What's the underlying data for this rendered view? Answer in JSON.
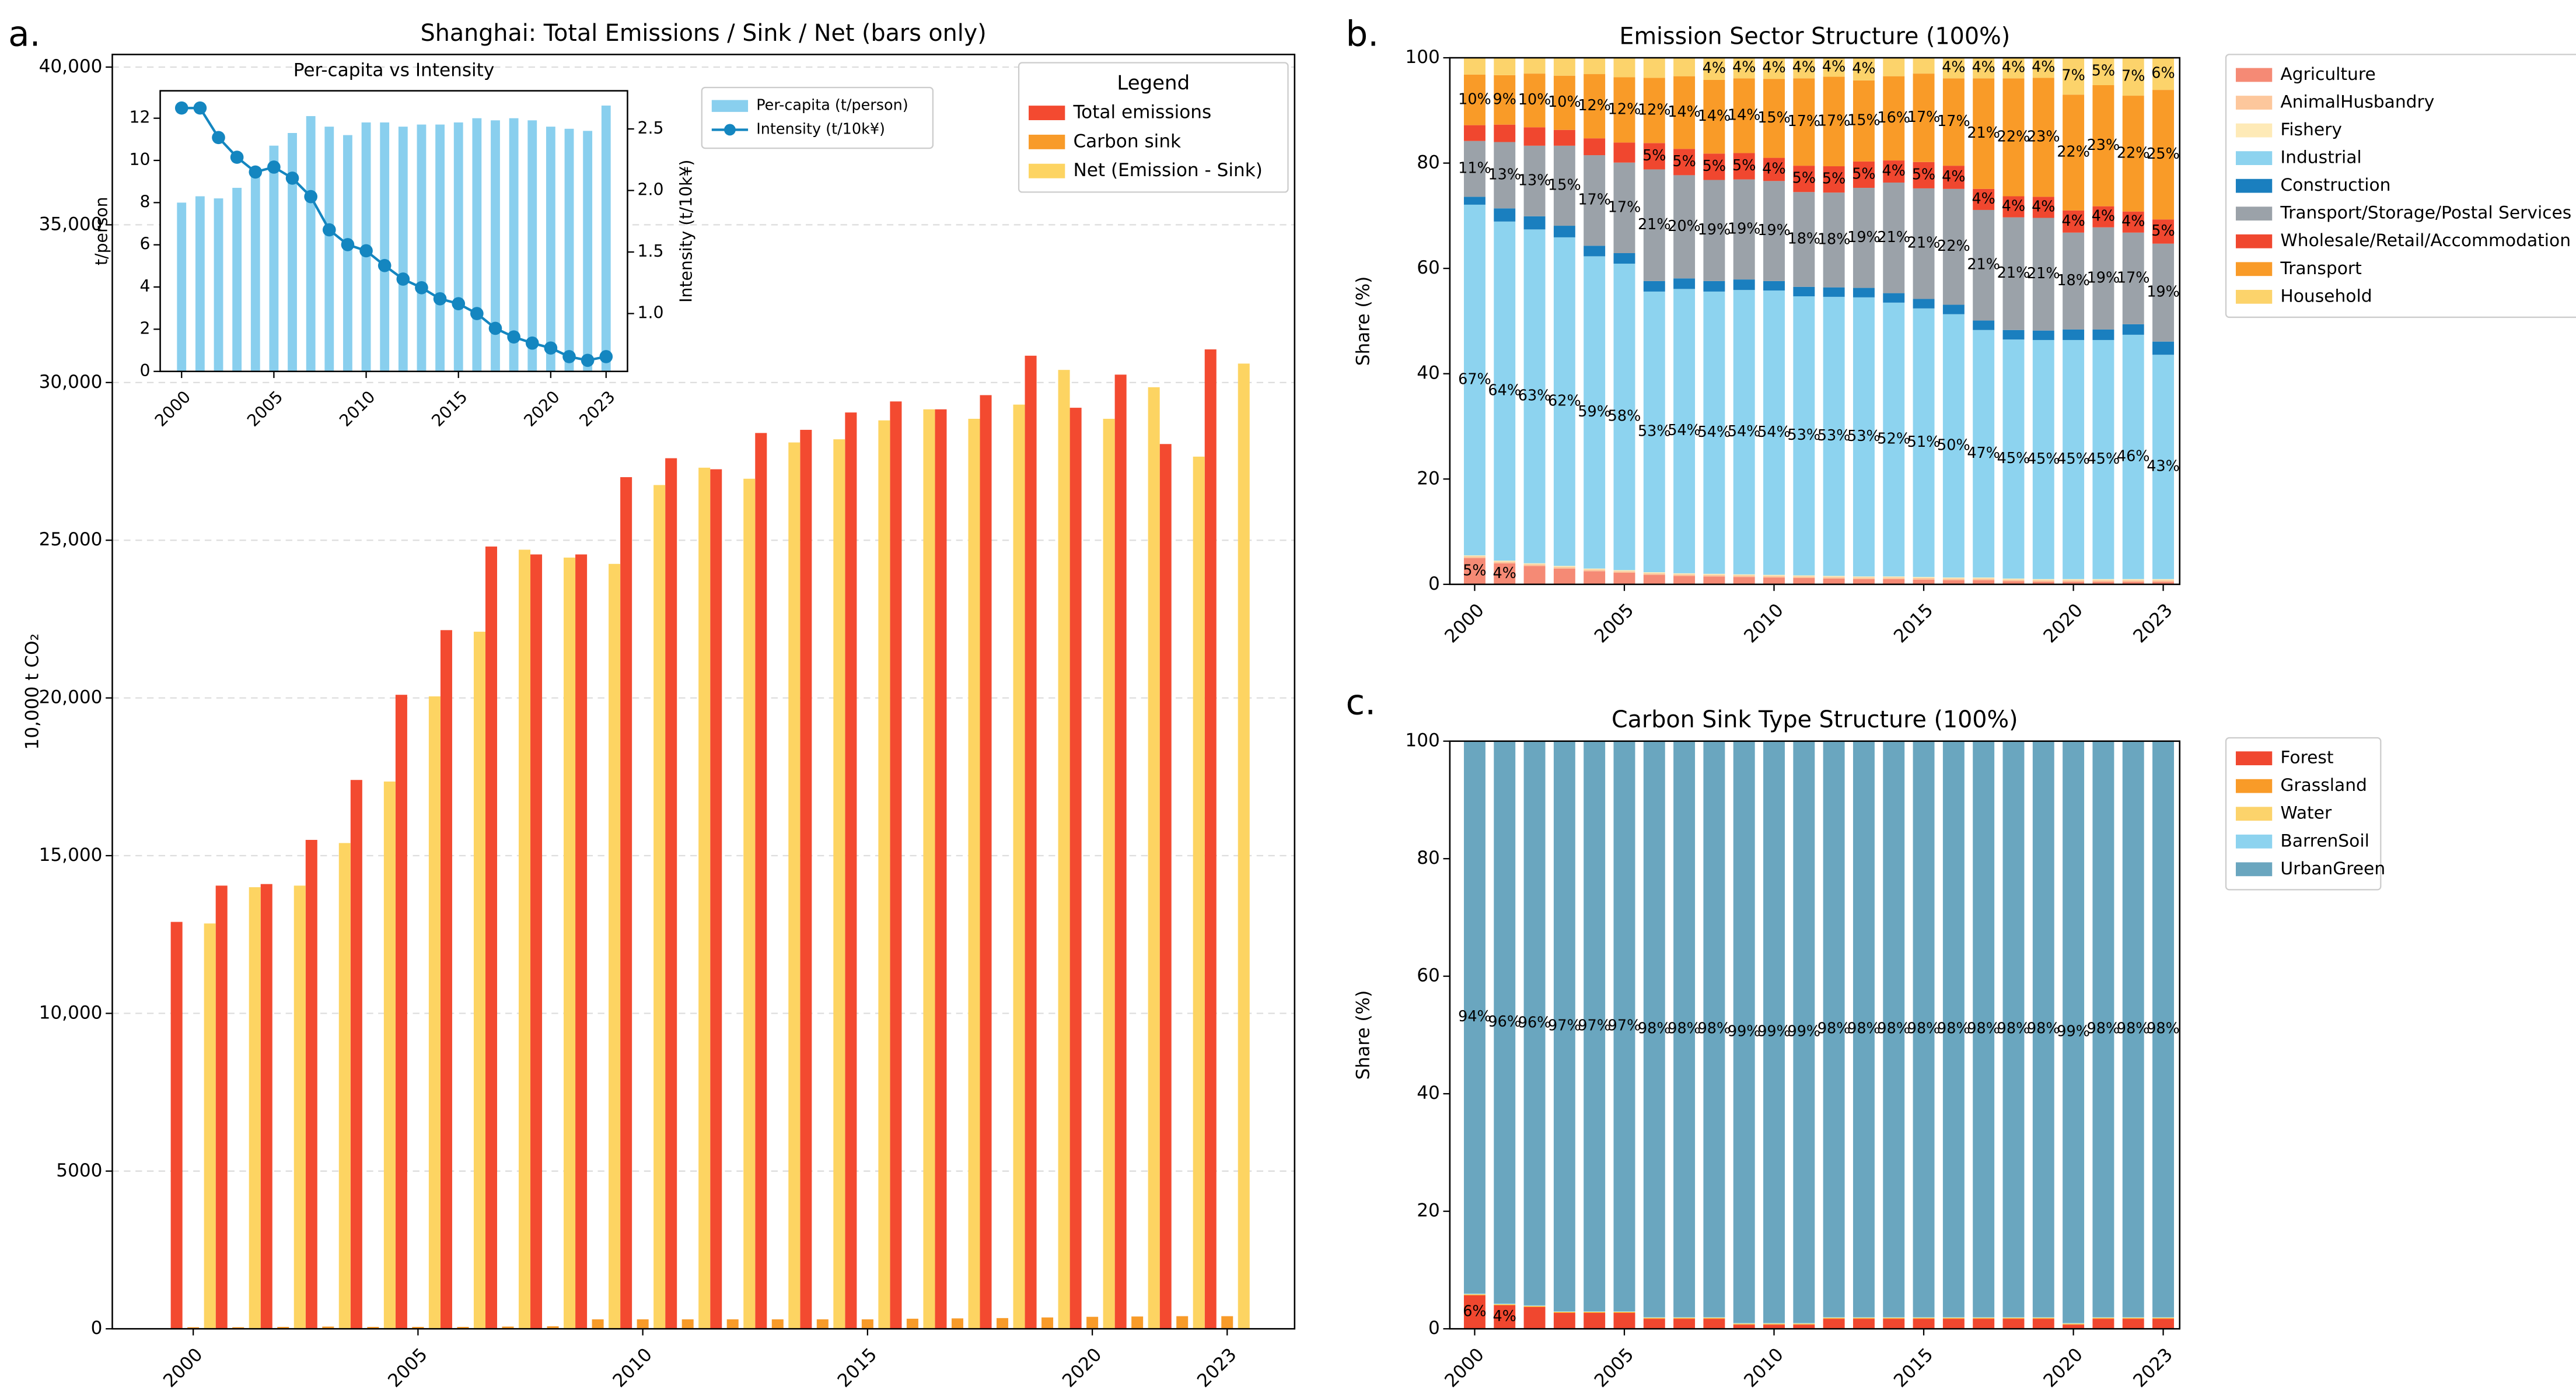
{
  "chart_data": [
    {
      "type": "bar",
      "panel_label": "a.",
      "title": "Shanghai: Total Emissions / Sink / Net (bars only)",
      "y_label": "10,000 t CO₂",
      "x": [
        2000,
        2001,
        2002,
        2003,
        2004,
        2005,
        2006,
        2007,
        2008,
        2009,
        2010,
        2011,
        2012,
        2013,
        2014,
        2015,
        2016,
        2017,
        2018,
        2019,
        2020,
        2021,
        2022,
        2023
      ],
      "xlim": [
        1998.2,
        2024.5
      ],
      "xticks": [
        2000,
        2005,
        2010,
        2015,
        2020,
        2023
      ],
      "ylim": [
        0,
        40400
      ],
      "yticks": [
        0,
        5000,
        {
          "value": 10000,
          "label": "10,000"
        },
        {
          "value": 15000,
          "label": "15,000"
        },
        {
          "value": 20000,
          "label": "20,000"
        },
        {
          "value": 25000,
          "label": "25,000"
        },
        {
          "value": 30000,
          "label": "30,000"
        },
        {
          "value": 35000,
          "label": "35,000"
        },
        {
          "value": 40000,
          "label": "40,000"
        }
      ],
      "grid": true,
      "legend": "upper right",
      "legend_title": "Legend",
      "series": [
        {
          "name": "Total emissions",
          "color": "#f34a30",
          "values": [
            12900,
            14050,
            14100,
            15500,
            17400,
            20100,
            22150,
            24800,
            24550,
            24550,
            27000,
            27600,
            27250,
            28400,
            28500,
            29050,
            29400,
            29150,
            29600,
            30850,
            29200,
            30250,
            28050,
            31050
          ]
        },
        {
          "name": "Carbon sink",
          "color": "#f89b29",
          "values": [
            50,
            50,
            60,
            70,
            60,
            60,
            60,
            70,
            80,
            300,
            300,
            300,
            300,
            300,
            300,
            300,
            320,
            330,
            340,
            360,
            380,
            390,
            400,
            400
          ]
        },
        {
          "name": "Net (Emission - Sink)",
          "color": "#fdd462",
          "values": [
            12850,
            14000,
            14050,
            15400,
            17350,
            20050,
            22100,
            24700,
            24450,
            24250,
            26750,
            27300,
            26950,
            28100,
            28200,
            28800,
            29150,
            28850,
            29300,
            30400,
            28850,
            29850,
            27650,
            30600
          ]
        }
      ]
    },
    {
      "type": "combo",
      "title": "Per-capita vs Intensity",
      "y_label": "t/person",
      "y2_label": "Intensity (t/10k¥)",
      "x": [
        2000,
        2001,
        2002,
        2003,
        2004,
        2005,
        2006,
        2007,
        2008,
        2009,
        2010,
        2011,
        2012,
        2013,
        2014,
        2015,
        2016,
        2017,
        2018,
        2019,
        2020,
        2021,
        2022,
        2023
      ],
      "xlim": [
        1998.84,
        2024.16
      ],
      "xticks": [
        2000,
        2005,
        2010,
        2015,
        2020,
        2023
      ],
      "ylim": [
        0,
        13.3
      ],
      "yticks": [
        0,
        2,
        4,
        6,
        8,
        10,
        12
      ],
      "y2lim": [
        0.53,
        2.81
      ],
      "y2ticks": [
        {
          "value": 1,
          "label": "1.0"
        },
        1.5,
        {
          "value": 2,
          "label": "2.0"
        },
        2.5
      ],
      "legend": "outside right",
      "series": [
        {
          "name": "Per-capita (t/person)",
          "type": "bar",
          "color": "#89cfee",
          "values": [
            8.0,
            8.3,
            8.2,
            8.7,
            9.5,
            10.7,
            11.3,
            12.1,
            11.6,
            11.2,
            11.8,
            11.8,
            11.6,
            11.7,
            11.7,
            11.8,
            12.0,
            11.9,
            12.0,
            11.9,
            11.6,
            11.5,
            11.4,
            12.6
          ]
        },
        {
          "name": "Intensity (t/10k¥)",
          "type": "line",
          "axis": "y2",
          "color": "#1486c0",
          "values": [
            2.67,
            2.67,
            2.43,
            2.27,
            2.15,
            2.19,
            2.1,
            1.95,
            1.68,
            1.56,
            1.51,
            1.39,
            1.28,
            1.21,
            1.12,
            1.08,
            1.0,
            0.88,
            0.81,
            0.76,
            0.72,
            0.65,
            0.62,
            0.65
          ]
        }
      ]
    },
    {
      "type": "stacked_bar",
      "panel_label": "b.",
      "title": "Emission Sector Structure (100%)",
      "y_label": "Share (%)",
      "x": [
        2000,
        2001,
        2002,
        2003,
        2004,
        2005,
        2006,
        2007,
        2008,
        2009,
        2010,
        2011,
        2012,
        2013,
        2014,
        2015,
        2016,
        2017,
        2018,
        2019,
        2020,
        2021,
        2022,
        2023
      ],
      "xlim": [
        1999.17,
        2023.55
      ],
      "xticks": [
        2000,
        2005,
        2010,
        2015,
        2020,
        2023
      ],
      "ylim": [
        0,
        100
      ],
      "yticks": [
        0,
        20,
        40,
        60,
        80,
        100
      ],
      "legend": "outside right",
      "series": [
        {
          "name": "Agriculture",
          "color": "#f58a75",
          "values": [
            5.0,
            4.0,
            3.5,
            3.0,
            2.5,
            2.2,
            1.8,
            1.6,
            1.5,
            1.4,
            1.3,
            1.2,
            1.1,
            1.0,
            1.0,
            0.9,
            0.8,
            0.8,
            0.6,
            0.5,
            0.5,
            0.5,
            0.5,
            0.5
          ],
          "value_labels": [
            "5%",
            "4%",
            null,
            null,
            null,
            null,
            null,
            null,
            null,
            null,
            null,
            null,
            null,
            null,
            null,
            null,
            null,
            null,
            null,
            null,
            null,
            null,
            null,
            null
          ]
        },
        {
          "name": "AnimalHusbandry",
          "color": "#fdc79c",
          "values": [
            0.3,
            0.3,
            0.3,
            0.3,
            0.3,
            0.3,
            0.3,
            0.3,
            0.3,
            0.3,
            0.3,
            0.3,
            0.3,
            0.3,
            0.3,
            0.3,
            0.3,
            0.3,
            0.3,
            0.3,
            0.3,
            0.3,
            0.3,
            0.3
          ]
        },
        {
          "name": "Fishery",
          "color": "#feeab7",
          "values": [
            0.2,
            0.2,
            0.2,
            0.2,
            0.2,
            0.2,
            0.2,
            0.2,
            0.2,
            0.2,
            0.2,
            0.2,
            0.2,
            0.2,
            0.2,
            0.2,
            0.2,
            0.2,
            0.2,
            0.2,
            0.2,
            0.2,
            0.2,
            0.2
          ]
        },
        {
          "name": "Industrial",
          "color": "#8dd3ef",
          "values": [
            66.6,
            64.4,
            63.4,
            62.4,
            59.3,
            58.2,
            53.3,
            54.0,
            53.6,
            54.0,
            54.0,
            53.0,
            53.0,
            53.0,
            52.0,
            51.0,
            50.0,
            47.0,
            45.4,
            45.4,
            45.4,
            45.4,
            46.4,
            42.6
          ],
          "value_labels": [
            "67%",
            "64%",
            "63%",
            "62%",
            "59%",
            "58%",
            "53%",
            "54%",
            "54%",
            "54%",
            "54%",
            "53%",
            "53%",
            "53%",
            "52%",
            "51%",
            "50%",
            "47%",
            "45%",
            "45%",
            "45%",
            "45%",
            "46%",
            "43%"
          ]
        },
        {
          "name": "Construction",
          "color": "#1a7fbf",
          "values": [
            1.5,
            2.5,
            2.5,
            2.2,
            2.0,
            2.0,
            2.0,
            2.0,
            2.0,
            2.0,
            1.8,
            1.8,
            1.8,
            1.8,
            1.8,
            1.8,
            1.8,
            1.8,
            1.8,
            1.8,
            2.0,
            2.0,
            2.0,
            2.5
          ]
        },
        {
          "name": "Transport/Storage/Postal Services",
          "color": "#9ba2a9",
          "values": [
            10.6,
            12.6,
            13.4,
            15.2,
            17.2,
            17.2,
            21.2,
            19.6,
            19.2,
            19.0,
            19.0,
            18.0,
            18.0,
            19.0,
            21.0,
            21.0,
            22.0,
            21.0,
            21.4,
            21.4,
            18.4,
            19.4,
            17.4,
            18.6
          ],
          "value_labels": [
            "11%",
            "13%",
            "13%",
            "15%",
            "17%",
            "17%",
            "21%",
            "20%",
            "19%",
            "19%",
            "19%",
            "18%",
            "18%",
            "19%",
            "21%",
            "21%",
            "22%",
            "21%",
            "21%",
            "21%",
            "18%",
            "19%",
            "17%",
            "19%"
          ]
        },
        {
          "name": "Wholesale/Retail/Accommodation",
          "color": "#f0472f",
          "values": [
            3.0,
            3.3,
            3.5,
            3.0,
            3.2,
            3.8,
            5.0,
            5.0,
            5.0,
            5.0,
            4.4,
            5.0,
            5.0,
            5.0,
            4.2,
            5.0,
            4.4,
            4.0,
            4.0,
            4.0,
            4.2,
            4.0,
            4.0,
            4.6
          ],
          "value_labels": [
            null,
            null,
            null,
            null,
            null,
            null,
            "5%",
            "5%",
            "5%",
            "5%",
            "4%",
            "5%",
            "5%",
            "5%",
            "4%",
            "5%",
            "4%",
            "4%",
            "4%",
            "4%",
            "4%",
            "4%",
            "4%",
            "5%"
          ]
        },
        {
          "name": "Transport",
          "color": "#f99b28",
          "values": [
            9.6,
            9.4,
            10.2,
            10.3,
            12.2,
            12.4,
            12.4,
            13.8,
            14.0,
            14.2,
            15.0,
            16.6,
            17.0,
            15.4,
            16.0,
            16.8,
            16.6,
            21.0,
            22.4,
            22.6,
            22.0,
            23.0,
            22.0,
            24.6
          ],
          "value_labels": [
            "10%",
            "9%",
            "10%",
            "10%",
            "12%",
            "12%",
            "12%",
            "14%",
            "14%",
            "14%",
            "15%",
            "17%",
            "17%",
            "15%",
            "16%",
            "17%",
            "17%",
            "21%",
            "22%",
            "23%",
            "22%",
            "23%",
            "22%",
            "25%"
          ]
        },
        {
          "name": "Household",
          "color": "#fcd36b",
          "values": [
            3.2,
            3.3,
            3.0,
            3.4,
            3.1,
            3.7,
            3.8,
            3.5,
            4.2,
            3.9,
            4.0,
            3.9,
            3.6,
            4.3,
            3.5,
            3.0,
            3.9,
            3.9,
            3.9,
            3.8,
            7.0,
            5.2,
            7.2,
            6.1
          ],
          "value_labels": [
            null,
            null,
            null,
            null,
            null,
            null,
            null,
            null,
            "4%",
            "4%",
            "4%",
            "4%",
            "4%",
            "4%",
            null,
            null,
            "4%",
            "4%",
            "4%",
            "4%",
            "7%",
            "5%",
            "7%",
            "6%"
          ]
        }
      ]
    },
    {
      "type": "stacked_bar",
      "panel_label": "c.",
      "title": "Carbon Sink Type Structure (100%)",
      "y_label": "Share (%)",
      "x": [
        2000,
        2001,
        2002,
        2003,
        2004,
        2005,
        2006,
        2007,
        2008,
        2009,
        2010,
        2011,
        2012,
        2013,
        2014,
        2015,
        2016,
        2017,
        2018,
        2019,
        2020,
        2021,
        2022,
        2023
      ],
      "xlim": [
        1999.17,
        2023.55
      ],
      "xticks": [
        2000,
        2005,
        2010,
        2015,
        2020,
        2023
      ],
      "ylim": [
        0,
        100
      ],
      "yticks": [
        0,
        20,
        40,
        60,
        80,
        100
      ],
      "legend": "outside right",
      "series": [
        {
          "name": "Forest",
          "color": "#f0472f",
          "values": [
            5.7,
            4.0,
            3.7,
            2.7,
            2.7,
            2.7,
            1.7,
            1.7,
            1.7,
            0.7,
            0.7,
            0.7,
            1.7,
            1.7,
            1.7,
            1.7,
            1.7,
            1.7,
            1.7,
            1.7,
            0.7,
            1.7,
            1.7,
            1.7
          ],
          "value_labels": [
            "6%",
            "4%",
            null,
            null,
            null,
            null,
            null,
            null,
            null,
            null,
            null,
            null,
            null,
            null,
            null,
            null,
            null,
            null,
            null,
            null,
            null,
            null,
            null,
            null
          ]
        },
        {
          "name": "Grassland",
          "color": "#f99b28",
          "values": [
            0.1,
            0.1,
            0.1,
            0.1,
            0.1,
            0.1,
            0.1,
            0.1,
            0.1,
            0.1,
            0.1,
            0.1,
            0.1,
            0.1,
            0.1,
            0.1,
            0.1,
            0.1,
            0.1,
            0.1,
            0.1,
            0.1,
            0.1,
            0.1
          ]
        },
        {
          "name": "Water",
          "color": "#fcd36b",
          "values": [
            0.1,
            0.1,
            0.1,
            0.1,
            0.1,
            0.1,
            0.1,
            0.1,
            0.1,
            0.1,
            0.1,
            0.1,
            0.1,
            0.1,
            0.1,
            0.1,
            0.1,
            0.1,
            0.1,
            0.1,
            0.1,
            0.1,
            0.1,
            0.1
          ]
        },
        {
          "name": "BarrenSoil",
          "color": "#8dd3ef",
          "values": [
            0.1,
            0.1,
            0.1,
            0.1,
            0.1,
            0.1,
            0.1,
            0.1,
            0.1,
            0.1,
            0.1,
            0.1,
            0.1,
            0.1,
            0.1,
            0.1,
            0.1,
            0.1,
            0.1,
            0.1,
            0.1,
            0.1,
            0.1,
            0.1
          ]
        },
        {
          "name": "UrbanGreen",
          "color": "#6aa6bf",
          "values": [
            94,
            95.7,
            96,
            97,
            97,
            97,
            98,
            98,
            98,
            99,
            99,
            99,
            98,
            98,
            98,
            98,
            98,
            98,
            98,
            98,
            99,
            98,
            98,
            98
          ],
          "value_labels": [
            "94%",
            "96%",
            "96%",
            "97%",
            "97%",
            "97%",
            "98%",
            "98%",
            "98%",
            "99%",
            "99%",
            "99%",
            "98%",
            "98%",
            "98%",
            "98%",
            "98%",
            "98%",
            "98%",
            "98%",
            "99%",
            "98%",
            "98%",
            "98%"
          ]
        }
      ]
    }
  ]
}
